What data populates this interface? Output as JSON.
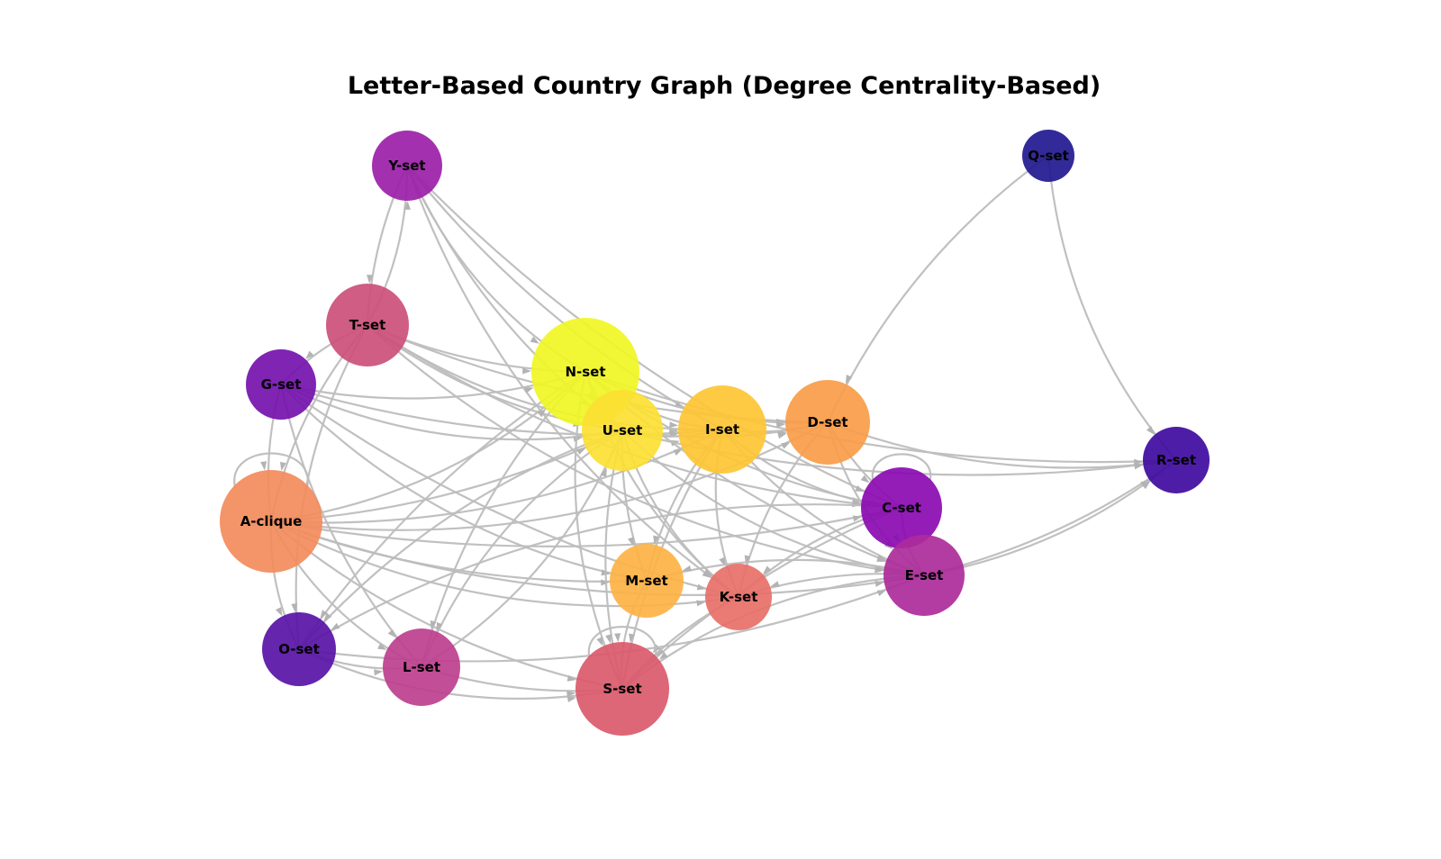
{
  "title": "Letter-Based Country Graph (Degree Centrality-Based)",
  "colors": {
    "edge": "#bdbdbd",
    "arrow": "#b3b3b3",
    "background": "#ffffff"
  },
  "nodes": [
    {
      "id": "Y",
      "label": "Y-set",
      "color": "#9b1fa8"
    },
    {
      "id": "Q",
      "label": "Q-set",
      "color": "#211890"
    },
    {
      "id": "T",
      "label": "T-set",
      "color": "#cc4f78"
    },
    {
      "id": "G",
      "label": "G-set",
      "color": "#7411ad"
    },
    {
      "id": "N",
      "label": "N-set",
      "color": "#f0f623"
    },
    {
      "id": "U",
      "label": "U-set",
      "color": "#fce032"
    },
    {
      "id": "I",
      "label": "I-set",
      "color": "#fec634"
    },
    {
      "id": "D",
      "label": "D-set",
      "color": "#f89c48"
    },
    {
      "id": "R",
      "label": "R-set",
      "color": "#3f0aa0"
    },
    {
      "id": "C",
      "label": "C-set",
      "color": "#8b0ab2"
    },
    {
      "id": "A",
      "label": "A-clique",
      "color": "#f28b5c"
    },
    {
      "id": "E",
      "label": "E-set",
      "color": "#ad2b9a"
    },
    {
      "id": "M",
      "label": "M-set",
      "color": "#feb244"
    },
    {
      "id": "K",
      "label": "K-set",
      "color": "#e86f68"
    },
    {
      "id": "O",
      "label": "O-set",
      "color": "#5812a6"
    },
    {
      "id": "L",
      "label": "L-set",
      "color": "#bd3f8e"
    },
    {
      "id": "S",
      "label": "S-set",
      "color": "#da5a6b"
    }
  ],
  "edges": [
    [
      "Y",
      "T"
    ],
    [
      "T",
      "Y"
    ],
    [
      "Y",
      "N"
    ],
    [
      "Y",
      "I"
    ],
    [
      "Y",
      "U"
    ],
    [
      "Y",
      "K"
    ],
    [
      "Y",
      "C"
    ],
    [
      "Q",
      "D"
    ],
    [
      "Q",
      "R"
    ],
    [
      "T",
      "G"
    ],
    [
      "T",
      "A"
    ],
    [
      "T",
      "O"
    ],
    [
      "T",
      "N"
    ],
    [
      "T",
      "U"
    ],
    [
      "T",
      "I"
    ],
    [
      "T",
      "D"
    ],
    [
      "T",
      "C"
    ],
    [
      "T",
      "E"
    ],
    [
      "G",
      "A"
    ],
    [
      "G",
      "N"
    ],
    [
      "G",
      "U"
    ],
    [
      "G",
      "I"
    ],
    [
      "G",
      "L"
    ],
    [
      "G",
      "M"
    ],
    [
      "G",
      "K"
    ],
    [
      "A",
      "O"
    ],
    [
      "A",
      "N"
    ],
    [
      "A",
      "U"
    ],
    [
      "A",
      "I"
    ],
    [
      "A",
      "D"
    ],
    [
      "A",
      "C"
    ],
    [
      "A",
      "E"
    ],
    [
      "A",
      "K"
    ],
    [
      "A",
      "M"
    ],
    [
      "A",
      "S"
    ],
    [
      "A",
      "L"
    ],
    [
      "N",
      "O"
    ],
    [
      "N",
      "L"
    ],
    [
      "N",
      "S"
    ],
    [
      "N",
      "E"
    ],
    [
      "N",
      "C"
    ],
    [
      "N",
      "K"
    ],
    [
      "N",
      "R"
    ],
    [
      "N",
      "D"
    ],
    [
      "N",
      "I"
    ],
    [
      "N",
      "U"
    ],
    [
      "U",
      "O"
    ],
    [
      "U",
      "L"
    ],
    [
      "U",
      "M"
    ],
    [
      "U",
      "S"
    ],
    [
      "U",
      "K"
    ],
    [
      "U",
      "D"
    ],
    [
      "U",
      "I"
    ],
    [
      "U",
      "E"
    ],
    [
      "U",
      "R"
    ],
    [
      "I",
      "M"
    ],
    [
      "I",
      "K"
    ],
    [
      "I",
      "S"
    ],
    [
      "I",
      "E"
    ],
    [
      "I",
      "C"
    ],
    [
      "I",
      "D"
    ],
    [
      "D",
      "K"
    ],
    [
      "D",
      "E"
    ],
    [
      "D",
      "C"
    ],
    [
      "D",
      "R"
    ],
    [
      "C",
      "E"
    ],
    [
      "C",
      "S"
    ],
    [
      "C",
      "K"
    ],
    [
      "C",
      "O"
    ],
    [
      "E",
      "K"
    ],
    [
      "E",
      "M"
    ],
    [
      "E",
      "S"
    ],
    [
      "E",
      "R"
    ],
    [
      "E",
      "R"
    ],
    [
      "M",
      "S"
    ],
    [
      "K",
      "S"
    ],
    [
      "O",
      "L"
    ],
    [
      "O",
      "S"
    ],
    [
      "L",
      "S"
    ],
    [
      "O",
      "E"
    ],
    [
      "L",
      "U"
    ]
  ],
  "self_loops": [
    "A",
    "C",
    "S"
  ]
}
